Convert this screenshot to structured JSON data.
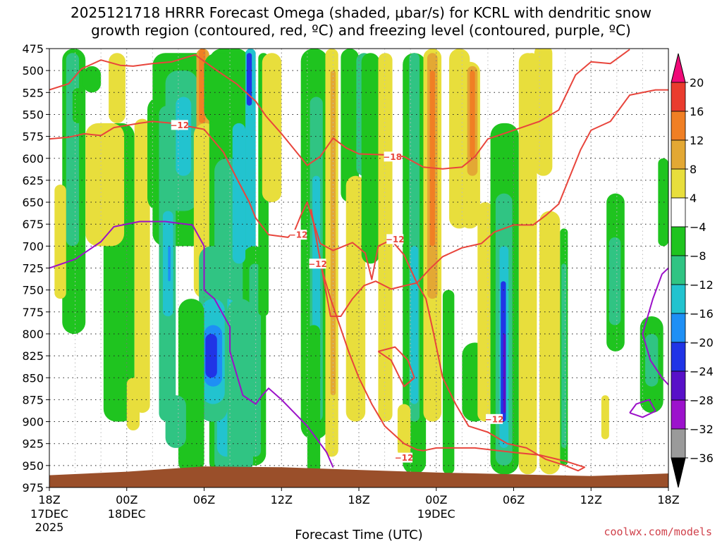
{
  "chart_data": {
    "type": "heatmap",
    "title_line1": "2025121718 HRRR Forecast Omega (shaded, µbar/s) for KCRL with dendritic snow",
    "title_line2": "growth region (contoured, red, ºC) and freezing level (contoured, purple, ºC)",
    "xlabel": "Forecast Time (UTC)",
    "credit": "coolwx.com/models",
    "y_ticks": [
      "475",
      "500",
      "525",
      "550",
      "575",
      "600",
      "625",
      "650",
      "675",
      "700",
      "725",
      "750",
      "775",
      "800",
      "825",
      "850",
      "875",
      "900",
      "925",
      "950",
      "975"
    ],
    "y_range_hpa": [
      475,
      975
    ],
    "x_range_hours": [
      0,
      48
    ],
    "x_ticks": [
      {
        "hour": 0,
        "label": "18Z",
        "date": "17DEC",
        "year": "2025"
      },
      {
        "hour": 6,
        "label": "00Z",
        "date": "18DEC",
        "year": ""
      },
      {
        "hour": 12,
        "label": "06Z",
        "date": "",
        "year": ""
      },
      {
        "hour": 18,
        "label": "12Z",
        "date": "",
        "year": ""
      },
      {
        "hour": 24,
        "label": "18Z",
        "date": "",
        "year": ""
      },
      {
        "hour": 30,
        "label": "00Z",
        "date": "19DEC",
        "year": ""
      },
      {
        "hour": 36,
        "label": "06Z",
        "date": "",
        "year": ""
      },
      {
        "hour": 42,
        "label": "12Z",
        "date": "",
        "year": ""
      },
      {
        "hour": 48,
        "label": "18Z",
        "date": "",
        "year": ""
      }
    ],
    "colorbar": {
      "labels": [
        "20",
        "16",
        "12",
        "8",
        "4",
        "−4",
        "−8",
        "−12",
        "−16",
        "−20",
        "−24",
        "−28",
        "−32",
        "−36"
      ],
      "colors": [
        "#f00a78",
        "#ea3c2e",
        "#f07f24",
        "#e3a834",
        "#e8de3c",
        "#ffffff",
        "#1fc41f",
        "#30c483",
        "#22c3cf",
        "#1e8ff5",
        "#2034e6",
        "#5810c8",
        "#9c12cc",
        "#9a9a9a",
        "#000000"
      ]
    },
    "contour_labels": [
      {
        "text": "−12",
        "hour": 10.1,
        "p": 562
      },
      {
        "text": "−18",
        "hour": 26.6,
        "p": 598
      },
      {
        "text": "−12",
        "hour": 19.3,
        "p": 687
      },
      {
        "text": "−12",
        "hour": 26.8,
        "p": 692
      },
      {
        "text": "−12",
        "hour": 20.8,
        "p": 720
      },
      {
        "text": "−12",
        "hour": 34.5,
        "p": 897
      },
      {
        "text": "−12",
        "hour": 27.5,
        "p": 941
      }
    ],
    "dgz_contours": [
      [
        [
          0,
          522
        ],
        [
          1.5,
          515
        ],
        [
          2.5,
          498
        ],
        [
          4,
          488
        ],
        [
          5.5,
          494
        ],
        [
          6.5,
          495
        ],
        [
          8,
          492
        ],
        [
          9.5,
          490
        ],
        [
          11.3,
          482
        ],
        [
          13,
          500
        ],
        [
          14.5,
          515
        ],
        [
          16,
          535
        ],
        [
          16.8,
          552
        ],
        [
          18,
          572
        ],
        [
          19,
          590
        ],
        [
          20,
          608
        ],
        [
          21,
          598
        ],
        [
          22,
          577
        ],
        [
          23,
          588
        ],
        [
          24,
          595
        ],
        [
          26,
          596
        ],
        [
          27.5,
          598
        ],
        [
          29,
          610
        ],
        [
          30.5,
          612
        ],
        [
          32,
          610
        ],
        [
          33,
          598
        ],
        [
          34,
          578
        ],
        [
          36,
          568
        ],
        [
          38,
          558
        ],
        [
          39.5,
          545
        ],
        [
          40.8,
          505
        ],
        [
          42,
          490
        ],
        [
          43.5,
          492
        ],
        [
          45,
          476
        ]
      ],
      [
        [
          0,
          578
        ],
        [
          1.5,
          576
        ],
        [
          2.7,
          572
        ],
        [
          4,
          574
        ],
        [
          5,
          565
        ],
        [
          7,
          560
        ],
        [
          8,
          558
        ],
        [
          9.5,
          560
        ],
        [
          12,
          567
        ],
        [
          13.5,
          593
        ],
        [
          14.5,
          622
        ],
        [
          15.5,
          650
        ],
        [
          16,
          668
        ],
        [
          17,
          687
        ],
        [
          18.5,
          690
        ],
        [
          19,
          683
        ],
        [
          19.5,
          665
        ],
        [
          20,
          650
        ],
        [
          21,
          697
        ],
        [
          22,
          705
        ],
        [
          23.5,
          696
        ],
        [
          24.5,
          708
        ],
        [
          25,
          738
        ],
        [
          25.5,
          700
        ],
        [
          26.5,
          693
        ],
        [
          27.5,
          710
        ],
        [
          28.5,
          742
        ],
        [
          29.5,
          726
        ],
        [
          30.5,
          712
        ],
        [
          32,
          702
        ],
        [
          33.5,
          697
        ],
        [
          34.5,
          684
        ],
        [
          36,
          676
        ],
        [
          37.5,
          676
        ],
        [
          38.5,
          665
        ],
        [
          39.5,
          652
        ],
        [
          41.2,
          590
        ],
        [
          42,
          568
        ],
        [
          43.5,
          558
        ],
        [
          45,
          528
        ],
        [
          47,
          522
        ],
        [
          48,
          522
        ]
      ],
      [
        [
          20.3,
          658
        ],
        [
          20.8,
          700
        ],
        [
          21.3,
          740
        ],
        [
          21.8,
          780
        ],
        [
          22.6,
          780
        ],
        [
          23.5,
          760
        ],
        [
          24.4,
          745
        ],
        [
          25.3,
          740
        ],
        [
          26.5,
          749
        ],
        [
          27.6,
          745
        ],
        [
          28.5,
          742
        ],
        [
          29.2,
          760
        ],
        [
          29.8,
          800
        ],
        [
          30.5,
          850
        ],
        [
          31.5,
          880
        ],
        [
          32.5,
          905
        ],
        [
          34,
          912
        ],
        [
          35.5,
          925
        ],
        [
          37,
          930
        ],
        [
          38.5,
          943
        ],
        [
          40,
          950
        ],
        [
          41,
          956
        ],
        [
          41.5,
          952
        ],
        [
          40,
          945
        ],
        [
          38,
          938
        ],
        [
          36,
          935
        ],
        [
          33,
          930
        ],
        [
          30,
          930
        ],
        [
          29,
          933
        ],
        [
          28.5,
          932
        ],
        [
          27.5,
          925
        ],
        [
          26,
          905
        ],
        [
          25,
          880
        ],
        [
          24,
          850
        ],
        [
          23.2,
          820
        ],
        [
          22.5,
          790
        ],
        [
          21.8,
          760
        ],
        [
          21.2,
          730
        ],
        [
          20.8,
          700
        ],
        [
          20.3,
          658
        ]
      ],
      [
        [
          25.5,
          820
        ],
        [
          26.5,
          830
        ],
        [
          27.5,
          860
        ],
        [
          28.3,
          850
        ],
        [
          27.8,
          830
        ],
        [
          26.8,
          815
        ],
        [
          25.5,
          820
        ]
      ]
    ],
    "freezing_level": [
      [
        [
          0,
          725
        ],
        [
          2,
          715
        ],
        [
          4,
          695
        ],
        [
          5,
          678
        ],
        [
          7,
          672
        ],
        [
          9,
          672
        ],
        [
          11.1,
          676
        ],
        [
          12,
          700
        ],
        [
          12,
          750
        ],
        [
          12.8,
          760
        ],
        [
          14,
          792
        ],
        [
          14,
          820
        ],
        [
          15,
          870
        ],
        [
          16,
          880
        ],
        [
          16.5,
          870
        ],
        [
          17,
          862
        ],
        [
          18,
          875
        ],
        [
          20,
          905
        ],
        [
          21.5,
          935
        ],
        [
          22,
          952
        ]
      ],
      [
        [
          45,
          890
        ],
        [
          45.5,
          880
        ],
        [
          46.5,
          875
        ],
        [
          47,
          888
        ],
        [
          46,
          895
        ],
        [
          45,
          890
        ]
      ],
      [
        [
          48,
          725
        ],
        [
          47.5,
          732
        ],
        [
          46.8,
          760
        ],
        [
          46,
          800
        ],
        [
          46.6,
          830
        ],
        [
          47.5,
          850
        ],
        [
          48,
          858
        ]
      ]
    ],
    "terrain_top_p": [
      [
        0,
        961
      ],
      [
        6,
        957
      ],
      [
        12,
        951
      ],
      [
        18,
        952
      ],
      [
        24,
        955
      ],
      [
        30,
        958
      ],
      [
        36,
        960
      ],
      [
        42,
        962
      ],
      [
        48,
        959
      ]
    ]
  }
}
